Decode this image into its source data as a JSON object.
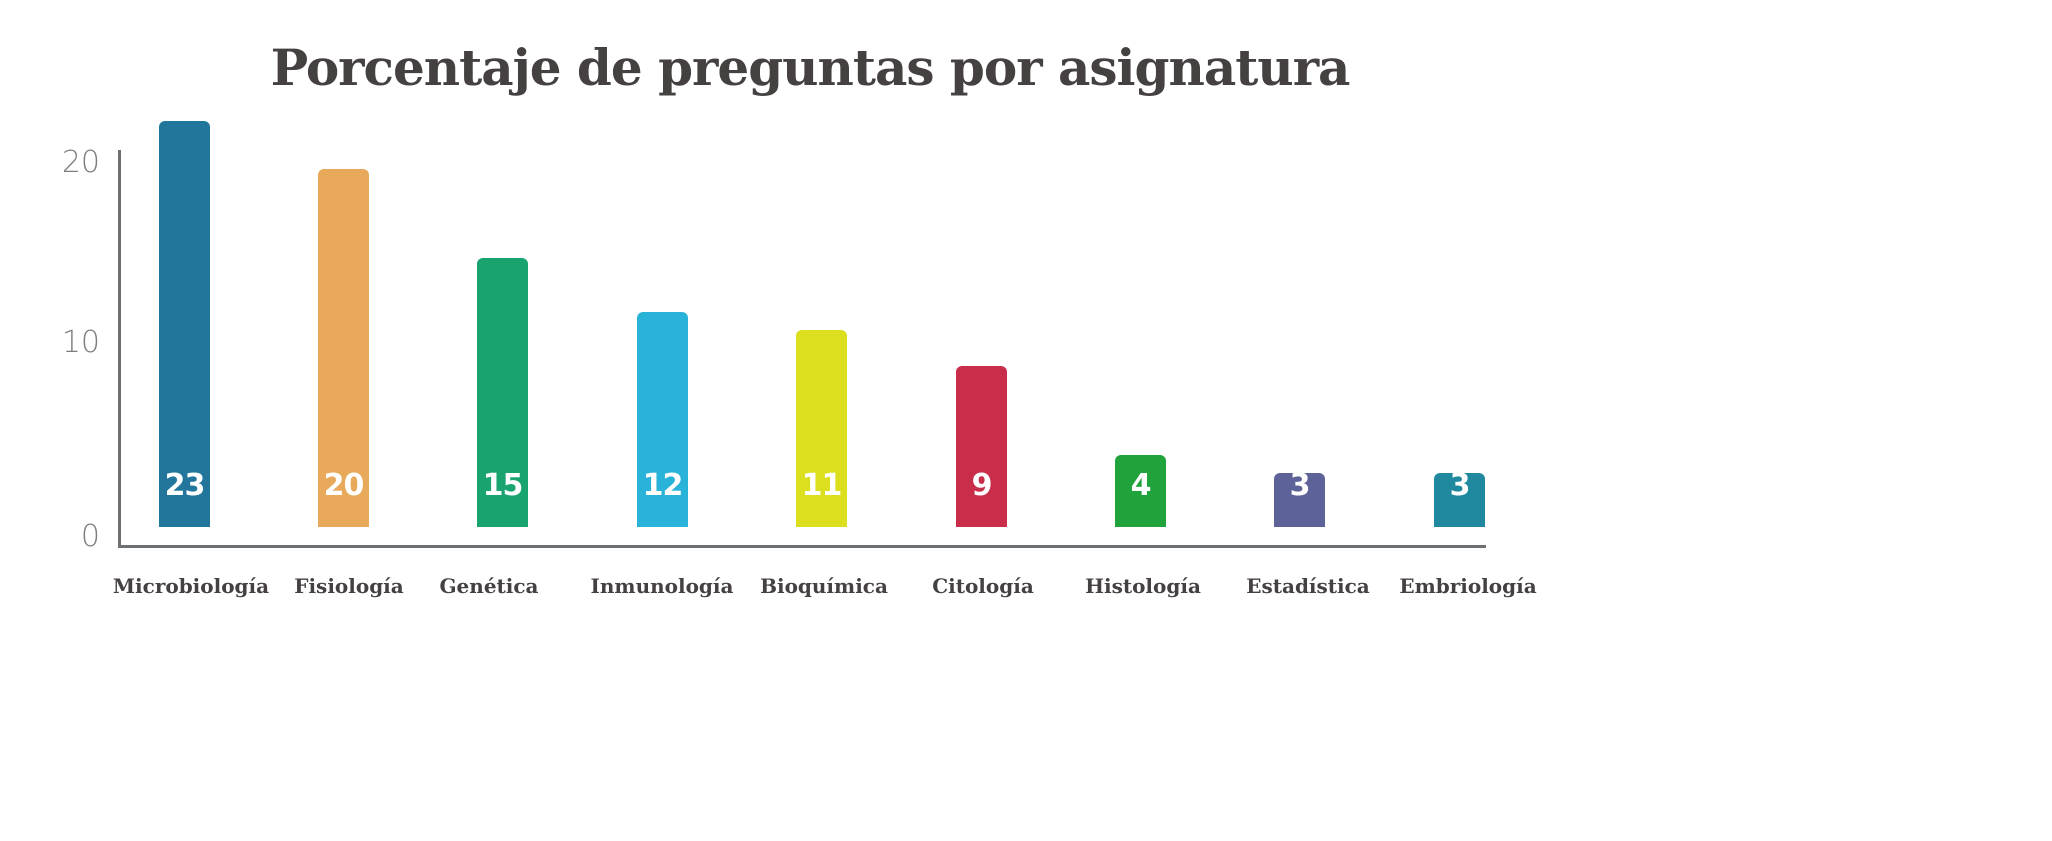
{
  "chart_data": {
    "type": "bar",
    "title": "Porcentaje de preguntas por asignatura",
    "xlabel": "",
    "ylabel": "",
    "ylim": [
      0,
      22
    ],
    "yticks": [
      "0",
      "10",
      "20"
    ],
    "grid": false,
    "legend": null,
    "categories": [
      "Microbiología",
      "Fisiología",
      "Genética",
      "Inmunología",
      "Bioquímica",
      "Citología",
      "Histología",
      "Estadística",
      "Embriología"
    ],
    "values": [
      23,
      20,
      15,
      12,
      11,
      9,
      4,
      3,
      3
    ],
    "value_labels": [
      "23",
      "20",
      "15",
      "12",
      "11",
      "9",
      "4",
      "3",
      "3"
    ],
    "colors": [
      "#22769b",
      "#e9a95b",
      "#19a46f",
      "#2ab3d9",
      "#dbdf1d",
      "#c82d4a",
      "#20a33a",
      "#5d6399",
      "#20899f"
    ]
  }
}
